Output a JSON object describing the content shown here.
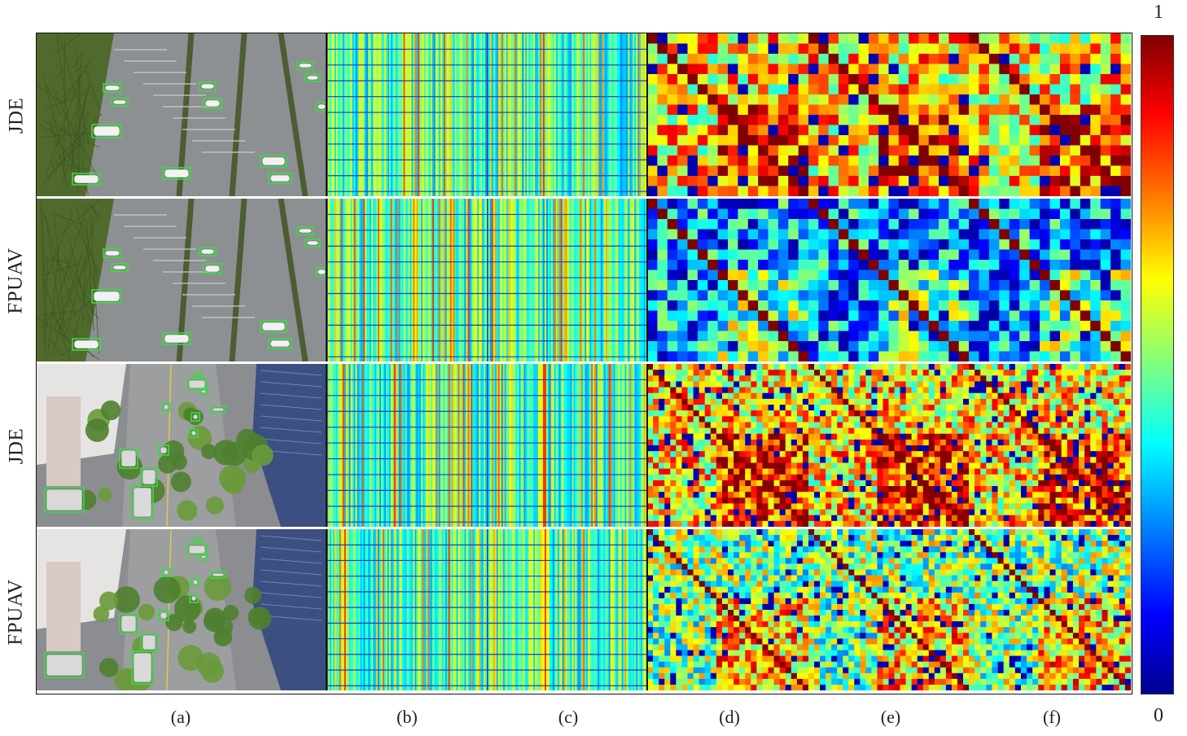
{
  "rows": [
    {
      "label": "JDE",
      "scene": "parking",
      "heat_temp": 0.55
    },
    {
      "label": "FPUAV",
      "scene": "parking",
      "heat_temp": 0.18
    },
    {
      "label": "JDE",
      "scene": "street",
      "heat_temp": 0.55
    },
    {
      "label": "FPUAV",
      "scene": "street",
      "heat_temp": 0.4
    }
  ],
  "columns": [
    "(a)",
    "(b)",
    "(c)",
    "(d)",
    "(e)",
    "(f)"
  ],
  "colorbar": {
    "max_label": "1",
    "min_label": "0",
    "colormap": "jet"
  },
  "colors": {
    "box": "#35e03a",
    "road": "#8d9092",
    "grass": "#4f6a2c"
  }
}
